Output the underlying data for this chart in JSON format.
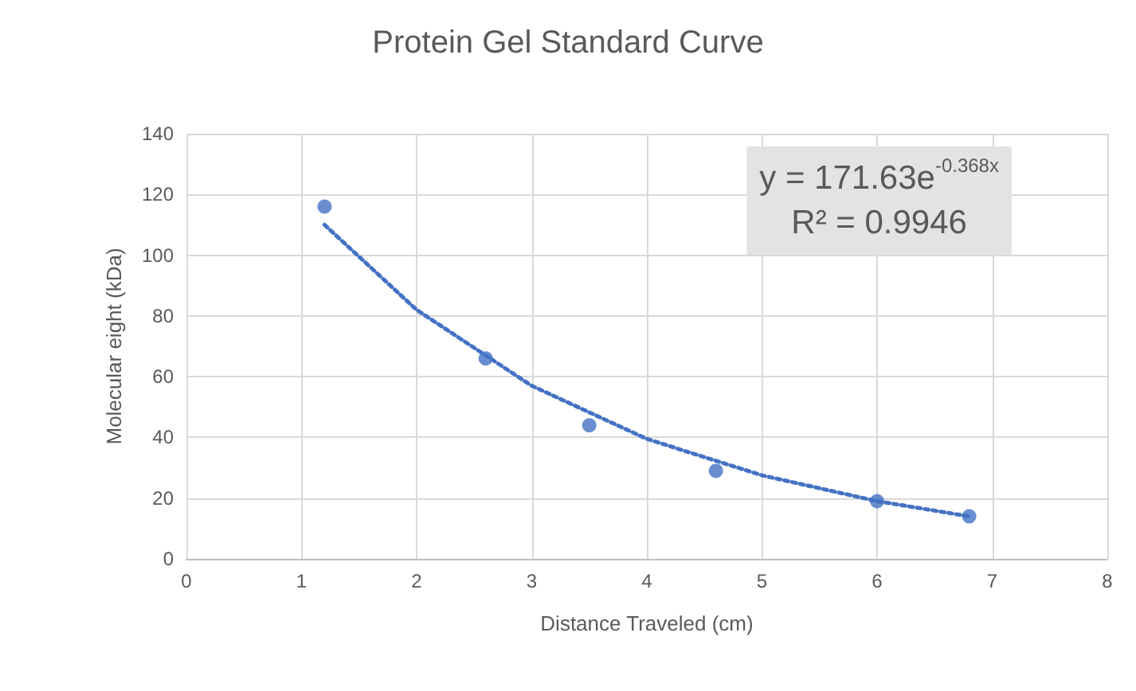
{
  "chart_data": {
    "type": "scatter",
    "title": "Protein Gel Standard Curve",
    "xlabel": "Distance Traveled (cm)",
    "ylabel": "Molecular eight (kDa)",
    "series": [
      {
        "color": "#4472c4",
        "x": [
          1.2,
          2.6,
          3.5,
          4.6,
          6,
          6.8
        ],
        "values": [
          116,
          66,
          44,
          29,
          19,
          14
        ],
        "marker": "circle"
      },
      {
        "type": "line",
        "color": "#4472c4",
        "x": [
          1.2,
          2,
          3,
          4,
          5,
          6,
          6.8
        ],
        "values": [
          110,
          82,
          57,
          39.5,
          27.5,
          19,
          14
        ],
        "marker": "none",
        "line_style": "dotted"
      }
    ],
    "annotations": [
      "y = 171.63e$^{-0.368x}$",
      "R² = 0.9946"
    ],
    "xlim": [
      0,
      8
    ],
    "xticks": [
      0,
      1,
      2,
      3,
      4,
      5,
      6,
      7,
      8
    ],
    "ylim": [
      0,
      140
    ],
    "yticks": [
      0,
      20,
      40,
      60,
      80,
      100,
      120,
      140
    ],
    "grid": true
  }
}
